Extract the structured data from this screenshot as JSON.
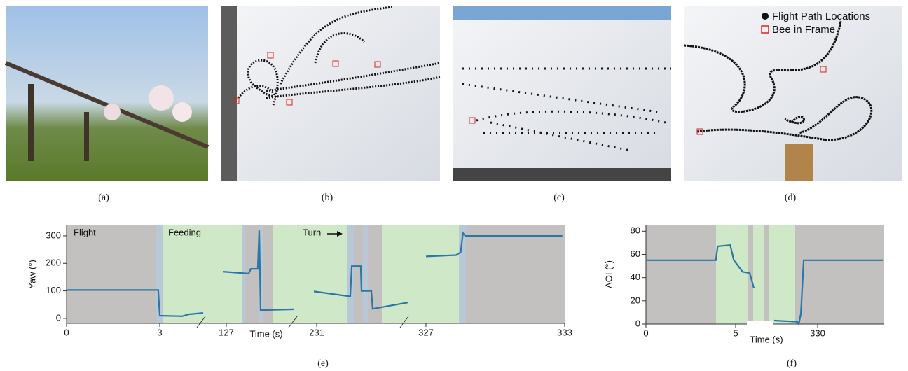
{
  "panels": [
    {
      "caption": "(a)"
    },
    {
      "caption": "(b)"
    },
    {
      "caption": "(c)"
    },
    {
      "caption": "(d)",
      "legend": [
        "Flight Path Locations",
        "Bee in Frame"
      ]
    }
  ],
  "chart_data": [
    {
      "type": "line",
      "caption": "(e)",
      "y_label": "Yaw (°)",
      "x_label": "Time (s)",
      "annotations": [
        "Flight",
        "Feeding",
        "Turn"
      ],
      "x": [
        0,
        2.95,
        3,
        44.8,
        57.8,
        83.9,
        100,
        120.5,
        152.8,
        155.2,
        163.2,
        164.9,
        166.5,
        205.2,
        215,
        227.8,
        260.5,
        261.8,
        269.7,
        270.4,
        279,
        280.2,
        311.6,
        320,
        327.0,
        328.3,
        328.5,
        328.6,
        328.7,
        332.9
      ],
      "series": [
        {
          "color": "#2a77a6",
          "values": [
            103,
            103,
            10,
            8,
            15,
            20,
            null,
            170,
            163,
            180,
            180,
            320,
            30,
            33,
            null,
            98,
            80,
            190,
            190,
            100,
            100,
            35,
            58,
            null,
            225,
            230,
            240,
            310,
            300,
            300
          ]
        }
      ],
      "ylim": [
        -18,
        338
      ],
      "yticks": [
        0,
        100,
        200,
        300
      ],
      "xticks": [
        0,
        3,
        127,
        231,
        327,
        333
      ]
    },
    {
      "type": "line",
      "caption": "(f)",
      "y_label": "AOI (°)",
      "x_label": "Time (s)",
      "x": [
        0,
        3.9,
        4.0,
        4.7,
        4.9,
        32.8,
        60.6,
        77.3,
        120,
        157.9,
        249.6,
        255.2,
        263.5,
        274.6,
        588.5
      ],
      "series": [
        {
          "color": "#2a77a6",
          "values": [
            55,
            55,
            67,
            68,
            55,
            45,
            44,
            31,
            null,
            3,
            2,
            0,
            9,
            55,
            55
          ]
        }
      ],
      "ylim": [
        0,
        85
      ],
      "yticks": [
        0,
        20,
        40,
        60,
        80
      ],
      "xticks": [
        0,
        5,
        330
      ]
    }
  ]
}
